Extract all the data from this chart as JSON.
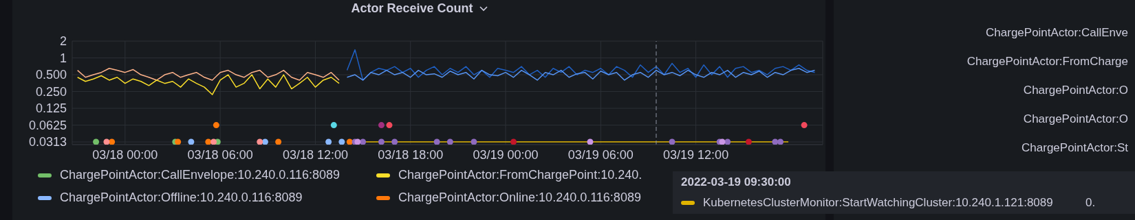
{
  "chart_data": [
    {
      "type": "line",
      "title": "Actor Receive Count",
      "log": "y",
      "grid": true,
      "legend": "bottom",
      "line_style": "solid",
      "x": [
        "2022-03-17T21:00",
        "2022-03-17T21:30",
        "2022-03-17T22:00",
        "2022-03-17T22:30",
        "2022-03-17T23:00",
        "2022-03-17T23:30",
        "2022-03-18T00:00",
        "2022-03-18T00:30",
        "2022-03-18T01:00",
        "2022-03-18T01:30",
        "2022-03-18T02:00",
        "2022-03-18T02:30",
        "2022-03-18T03:00",
        "2022-03-18T03:30",
        "2022-03-18T04:00",
        "2022-03-18T04:30",
        "2022-03-18T05:00",
        "2022-03-18T05:30",
        "2022-03-18T06:00",
        "2022-03-18T06:30",
        "2022-03-18T07:00",
        "2022-03-18T07:30",
        "2022-03-18T08:00",
        "2022-03-18T08:30",
        "2022-03-18T09:00",
        "2022-03-18T09:30",
        "2022-03-18T10:00",
        "2022-03-18T10:30",
        "2022-03-18T11:00",
        "2022-03-18T11:30",
        "2022-03-18T12:00",
        "2022-03-18T12:30",
        "2022-03-18T13:00",
        "2022-03-18T13:30",
        "2022-03-18T14:00",
        "2022-03-18T14:30",
        "2022-03-18T15:00",
        "2022-03-18T15:30",
        "2022-03-18T16:00",
        "2022-03-18T16:30",
        "2022-03-18T17:00",
        "2022-03-18T17:30",
        "2022-03-18T18:00",
        "2022-03-18T18:30",
        "2022-03-18T19:00",
        "2022-03-18T19:30",
        "2022-03-18T20:00",
        "2022-03-18T20:30",
        "2022-03-18T21:00",
        "2022-03-18T21:30",
        "2022-03-18T22:00",
        "2022-03-18T22:30",
        "2022-03-18T23:00",
        "2022-03-18T23:30",
        "2022-03-19T00:00",
        "2022-03-19T00:30",
        "2022-03-19T01:00",
        "2022-03-19T01:30",
        "2022-03-19T02:00",
        "2022-03-19T02:30",
        "2022-03-19T03:00",
        "2022-03-19T03:30",
        "2022-03-19T04:00",
        "2022-03-19T04:30",
        "2022-03-19T05:00",
        "2022-03-19T05:30",
        "2022-03-19T06:00",
        "2022-03-19T06:30",
        "2022-03-19T07:00",
        "2022-03-19T07:30",
        "2022-03-19T08:00",
        "2022-03-19T08:30",
        "2022-03-19T09:00",
        "2022-03-19T09:30",
        "2022-03-19T10:00",
        "2022-03-19T10:30",
        "2022-03-19T11:00",
        "2022-03-19T11:30",
        "2022-03-19T12:00",
        "2022-03-19T12:30",
        "2022-03-19T13:00",
        "2022-03-19T13:30",
        "2022-03-19T14:00",
        "2022-03-19T14:30",
        "2022-03-19T15:00",
        "2022-03-19T15:30",
        "2022-03-19T16:00",
        "2022-03-19T16:30",
        "2022-03-19T17:00",
        "2022-03-19T17:30",
        "2022-03-19T18:00",
        "2022-03-19T18:30",
        "2022-03-19T19:00",
        "2022-03-19T19:30"
      ],
      "xlim": [
        "2022-03-17T20:40",
        "2022-03-19T20:00"
      ],
      "xticks": [
        {
          "value": "2022-03-18T00:00",
          "label": "03/18 00:00"
        },
        {
          "value": "2022-03-18T06:00",
          "label": "03/18 06:00"
        },
        {
          "value": "2022-03-18T12:00",
          "label": "03/18 12:00"
        },
        {
          "value": "2022-03-18T18:00",
          "label": "03/18 18:00"
        },
        {
          "value": "2022-03-19T00:00",
          "label": "03/19 00:00"
        },
        {
          "value": "2022-03-19T06:00",
          "label": "03/19 06:00"
        },
        {
          "value": "2022-03-19T12:00",
          "label": "03/19 12:00"
        }
      ],
      "ylim": [
        0.028,
        2
      ],
      "yticks": [
        0.0313,
        0.0625,
        0.125,
        {
          "value": 0.25,
          "label": "0.250"
        },
        {
          "value": 0.5,
          "label": "0.500"
        },
        1,
        2
      ],
      "ref_lines": [
        {
          "axis": "x",
          "value": "2022-03-19T09:30",
          "color": "#8e96a4",
          "line_style": "dashed"
        }
      ],
      "annotations": [
        "2022-03-19 09:30:00",
        "KubernetesClusterMonitor:StartWatchingCluster:10.240.1.121:8089",
        "0."
      ],
      "series": [
        {
          "type": "scatter",
          "name": "ChargePointActor:CallEnvelope:10.240.0.116:8089",
          "color": "#73bf69",
          "x": [
            "2022-03-17T22:10",
            "2022-03-18T03:10",
            "2022-03-18T05:50"
          ],
          "values": [
            0.0313,
            0.0313,
            0.0313
          ]
        },
        {
          "type": "line",
          "color": "#ffb38a",
          "values": [
            0.6,
            0.45,
            0.5,
            0.55,
            0.65,
            0.6,
            0.55,
            0.62,
            0.5,
            0.45,
            0.4,
            0.5,
            0.55,
            0.45,
            0.5,
            0.55,
            0.45,
            0.4,
            0.55,
            0.6,
            0.5,
            0.45,
            0.55,
            0.6,
            0.45,
            0.5,
            0.6,
            0.45,
            0.4,
            0.55,
            0.5,
            0.45,
            0.55,
            0.4,
            null,
            null,
            null,
            null,
            null,
            null,
            null,
            null,
            null,
            null,
            null,
            null,
            null,
            null,
            null,
            null,
            null,
            null,
            null,
            null,
            null,
            null,
            null,
            null,
            null,
            null,
            null,
            null,
            null,
            null,
            null,
            null,
            null,
            null,
            null,
            null,
            null,
            null,
            null,
            null,
            null,
            null,
            null,
            null,
            null,
            null,
            null,
            null,
            null,
            null,
            null,
            null,
            null,
            null,
            null,
            null,
            null,
            null,
            null,
            null
          ]
        },
        {
          "type": "line",
          "name": "ChargePointActor:FromChargePoint:10.240.",
          "color": "#fade2a",
          "values": [
            0.45,
            0.38,
            0.42,
            0.48,
            0.4,
            0.45,
            0.35,
            0.42,
            0.38,
            0.32,
            0.4,
            0.35,
            0.38,
            0.3,
            0.42,
            0.35,
            0.3,
            0.22,
            0.4,
            0.5,
            0.3,
            0.35,
            0.5,
            0.28,
            0.42,
            0.3,
            0.5,
            0.28,
            0.35,
            0.45,
            0.3,
            0.4,
            0.45,
            0.35,
            null,
            null,
            null,
            null,
            null,
            null,
            null,
            null,
            null,
            null,
            null,
            null,
            null,
            null,
            null,
            null,
            null,
            null,
            null,
            null,
            null,
            null,
            null,
            null,
            null,
            null,
            null,
            null,
            null,
            null,
            null,
            null,
            null,
            null,
            null,
            null,
            null,
            null,
            null,
            null,
            null,
            null,
            null,
            null,
            null,
            null,
            null,
            null,
            null,
            null,
            null,
            null,
            null,
            null,
            null,
            null,
            null,
            null,
            null,
            null
          ]
        },
        {
          "type": "line",
          "color": "#1f60c4",
          "values": [
            null,
            null,
            null,
            null,
            null,
            null,
            null,
            null,
            null,
            null,
            null,
            null,
            null,
            null,
            null,
            null,
            null,
            null,
            null,
            null,
            null,
            null,
            null,
            null,
            null,
            null,
            null,
            null,
            null,
            null,
            null,
            null,
            null,
            null,
            0.6,
            1.4,
            0.4,
            0.55,
            0.65,
            0.6,
            0.7,
            0.55,
            0.65,
            0.45,
            0.6,
            0.7,
            0.5,
            0.65,
            0.55,
            0.7,
            0.5,
            0.6,
            0.45,
            0.65,
            0.6,
            0.55,
            0.7,
            0.5,
            0.6,
            0.45,
            0.65,
            0.55,
            0.7,
            0.5,
            0.6,
            0.55,
            0.65,
            0.5,
            0.7,
            0.6,
            0.45,
            0.75,
            0.55,
            0.7,
            0.5,
            0.8,
            0.55,
            0.65,
            0.45,
            0.75,
            0.5,
            0.7,
            0.45,
            0.65,
            0.7,
            0.55,
            0.6,
            0.5,
            0.65,
            0.7,
            0.6,
            0.75,
            0.6,
            0.55
          ]
        },
        {
          "type": "line",
          "color": "#5794f2",
          "values": [
            null,
            null,
            null,
            null,
            null,
            null,
            null,
            null,
            null,
            null,
            null,
            null,
            null,
            null,
            null,
            null,
            null,
            null,
            null,
            null,
            null,
            null,
            null,
            null,
            null,
            null,
            null,
            null,
            null,
            null,
            null,
            null,
            null,
            null,
            0.45,
            0.5,
            0.4,
            0.55,
            0.5,
            0.6,
            0.5,
            0.55,
            0.45,
            0.6,
            0.5,
            0.52,
            0.45,
            0.58,
            0.5,
            0.55,
            0.42,
            0.6,
            0.5,
            0.48,
            0.55,
            0.45,
            0.6,
            0.5,
            0.4,
            0.55,
            0.5,
            0.6,
            0.45,
            0.52,
            0.55,
            0.42,
            0.58,
            0.5,
            0.55,
            0.4,
            0.5,
            0.55,
            0.45,
            0.6,
            0.5,
            0.55,
            0.48,
            0.6,
            0.5,
            0.45,
            0.55,
            0.5,
            0.6,
            0.45,
            0.55,
            0.5,
            0.58,
            0.45,
            0.55,
            0.5,
            0.6,
            0.65,
            0.55,
            0.6
          ]
        },
        {
          "type": "line",
          "color": "#e0b400",
          "x": [
            "2022-03-18T14:00",
            "2022-03-19T17:50"
          ],
          "values": [
            0.0313,
            0.0313
          ]
        },
        {
          "type": "scatter",
          "name": "ChargePointActor:Offline:10.240.0.116:8089",
          "color": "#8ab8ff",
          "x": [
            "2022-03-18T04:10",
            "2022-03-18T08:50",
            "2022-03-18T12:50",
            "2022-03-18T13:40"
          ],
          "values": [
            0.0313,
            0.0313,
            0.0313,
            0.0313
          ]
        },
        {
          "type": "scatter",
          "name": "ChargePointActor:Online:10.240.0.116:8089",
          "color": "#ff780a",
          "x": [
            "2022-03-17T23:10",
            "2022-03-18T03:20",
            "2022-03-18T05:15",
            "2022-03-18T05:45",
            "2022-03-18T09:40",
            "2022-03-18T14:10"
          ],
          "values": [
            0.0313,
            0.0313,
            0.0313,
            0.0625,
            0.0313,
            0.0313
          ]
        },
        {
          "type": "scatter",
          "color": "#ff9090",
          "x": [
            "2022-03-17T22:50",
            "2022-03-18T05:35",
            "2022-03-18T08:30"
          ],
          "values": [
            0.0313,
            0.0313,
            0.0313
          ]
        },
        {
          "type": "scatter",
          "color": "#5ad8e6",
          "x": [
            "2022-03-18T13:10"
          ],
          "values": [
            0.0625
          ]
        },
        {
          "type": "scatter",
          "color": "#a0307f",
          "x": [
            "2022-03-18T16:10"
          ],
          "values": [
            0.0625
          ]
        },
        {
          "type": "scatter",
          "color": "#f2495c",
          "x": [
            "2022-03-18T16:40",
            "2022-03-19T18:50"
          ],
          "values": [
            0.0625,
            0.0625
          ]
        },
        {
          "type": "scatter",
          "color": "#8f6bbf",
          "x": [
            "2022-03-18T14:30",
            "2022-03-18T15:00",
            "2022-03-18T16:10",
            "2022-03-18T17:00",
            "2022-03-18T19:40",
            "2022-03-18T20:30",
            "2022-03-18T22:00",
            "2022-03-19T10:30",
            "2022-03-19T13:30",
            "2022-03-19T14:00",
            "2022-03-19T17:00",
            "2022-03-19T17:20"
          ],
          "values": [
            0.0313,
            0.0313,
            0.0313,
            0.0313,
            0.0313,
            0.0313,
            0.0313,
            0.0313,
            0.0313,
            0.0313,
            0.0313,
            0.0313
          ]
        },
        {
          "type": "scatter",
          "color": "#ca95e5",
          "x": [
            "2022-03-18T14:40",
            "2022-03-19T05:20",
            "2022-03-19T13:40"
          ],
          "values": [
            0.0313,
            0.0313,
            0.0313
          ]
        },
        {
          "type": "scatter",
          "color": "#c4162a",
          "x": [
            "2022-03-19T00:30",
            "2022-03-19T15:20"
          ],
          "values": [
            0.0313,
            0.0313
          ]
        }
      ]
    },
    {
      "type": "other",
      "annotations": [
        "ChargePointActor:CallEnve",
        "ChargePointActor:FromCharge",
        "ChargePointActor:O",
        "ChargePointActor:O",
        "ChargePointActor:St"
      ]
    }
  ]
}
